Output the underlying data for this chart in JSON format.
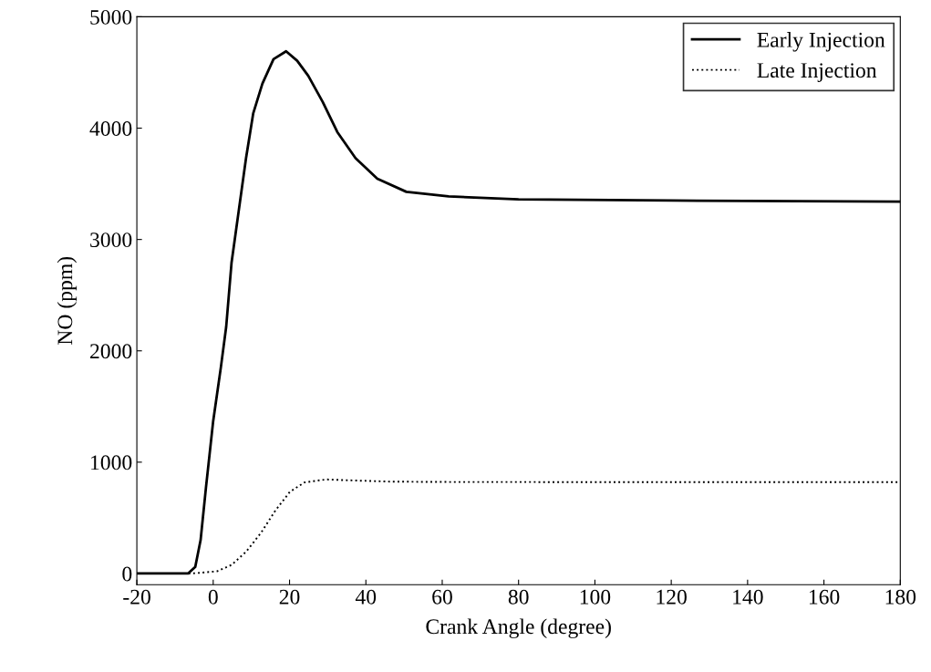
{
  "chart_data": {
    "type": "line",
    "xlabel": "Crank Angle (degree)",
    "ylabel": "NO (ppm)",
    "xlim": [
      -20,
      180
    ],
    "xticks": [
      -20,
      0,
      20,
      40,
      60,
      80,
      100,
      120,
      140,
      160,
      180
    ],
    "ylim": [
      -100,
      5000
    ],
    "yticks": [
      0,
      1000,
      2000,
      3000,
      4000,
      5000
    ],
    "grid": false,
    "legend": "top right",
    "marker": "none",
    "series": [
      {
        "name": "Early Injection",
        "color": "#000000",
        "line_style": "solid",
        "x": [
          -20,
          -6.6,
          -4.7,
          -3.3,
          -1.9,
          0,
          2,
          3.4,
          4.8,
          6.7,
          8.6,
          10.5,
          12.9,
          15.8,
          19.1,
          22,
          24.9,
          28.7,
          32.5,
          37.3,
          43,
          50.6,
          61.7,
          80,
          120,
          180
        ],
        "values": [
          0,
          0,
          60,
          300,
          770,
          1370,
          1850,
          2215,
          2790,
          3260,
          3730,
          4135,
          4400,
          4620,
          4690,
          4605,
          4470,
          4235,
          3966,
          3730,
          3545,
          3428,
          3387,
          3360,
          3350,
          3340
        ]
      },
      {
        "name": "Late Injection",
        "color": "#000000",
        "line_style": "dotted",
        "x": [
          -20,
          -5.7,
          1,
          4.8,
          8.6,
          12.5,
          16.3,
          20.1,
          23.9,
          29.6,
          37.3,
          46.8,
          61.7,
          120,
          180
        ],
        "values": [
          0,
          0,
          20,
          77,
          195,
          364,
          566,
          734,
          818,
          845,
          835,
          825,
          822,
          821,
          820
        ]
      }
    ]
  }
}
